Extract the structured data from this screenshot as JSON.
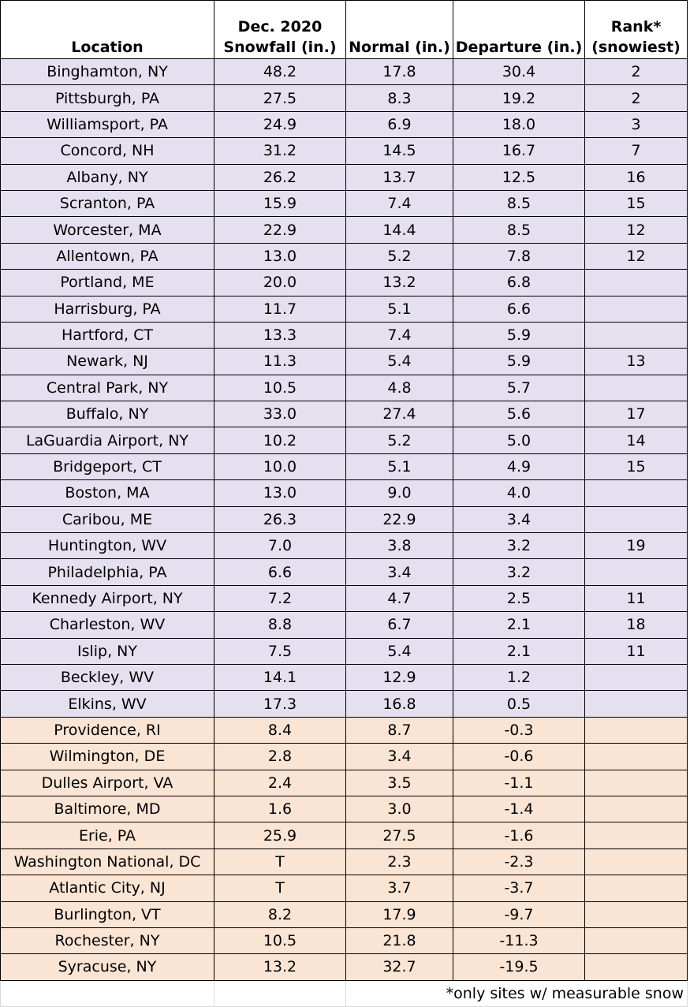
{
  "colors": {
    "above_normal_row": "#e4e0ef",
    "below_normal_row": "#fae4d4"
  },
  "headers": {
    "location": "Location",
    "snowfall_line1": "Dec. 2020",
    "snowfall_line2": "Snowfall (in.)",
    "normal": "Normal (in.)",
    "departure": "Departure (in.)",
    "rank_line1": "Rank*",
    "rank_line2": "(snowiest)"
  },
  "rows": [
    {
      "location": "Binghamton, NY",
      "snowfall": "48.2",
      "normal": "17.8",
      "departure": "30.4",
      "rank": "2",
      "group": "above"
    },
    {
      "location": "Pittsburgh, PA",
      "snowfall": "27.5",
      "normal": "8.3",
      "departure": "19.2",
      "rank": "2",
      "group": "above"
    },
    {
      "location": "Williamsport, PA",
      "snowfall": "24.9",
      "normal": "6.9",
      "departure": "18.0",
      "rank": "3",
      "group": "above"
    },
    {
      "location": "Concord, NH",
      "snowfall": "31.2",
      "normal": "14.5",
      "departure": "16.7",
      "rank": "7",
      "group": "above"
    },
    {
      "location": "Albany, NY",
      "snowfall": "26.2",
      "normal": "13.7",
      "departure": "12.5",
      "rank": "16",
      "group": "above"
    },
    {
      "location": "Scranton, PA",
      "snowfall": "15.9",
      "normal": "7.4",
      "departure": "8.5",
      "rank": "15",
      "group": "above"
    },
    {
      "location": "Worcester, MA",
      "snowfall": "22.9",
      "normal": "14.4",
      "departure": "8.5",
      "rank": "12",
      "group": "above"
    },
    {
      "location": "Allentown, PA",
      "snowfall": "13.0",
      "normal": "5.2",
      "departure": "7.8",
      "rank": "12",
      "group": "above"
    },
    {
      "location": "Portland, ME",
      "snowfall": "20.0",
      "normal": "13.2",
      "departure": "6.8",
      "rank": "",
      "group": "above"
    },
    {
      "location": "Harrisburg, PA",
      "snowfall": "11.7",
      "normal": "5.1",
      "departure": "6.6",
      "rank": "",
      "group": "above"
    },
    {
      "location": "Hartford, CT",
      "snowfall": "13.3",
      "normal": "7.4",
      "departure": "5.9",
      "rank": "",
      "group": "above"
    },
    {
      "location": "Newark, NJ",
      "snowfall": "11.3",
      "normal": "5.4",
      "departure": "5.9",
      "rank": "13",
      "group": "above"
    },
    {
      "location": "Central Park, NY",
      "snowfall": "10.5",
      "normal": "4.8",
      "departure": "5.7",
      "rank": "",
      "group": "above"
    },
    {
      "location": "Buffalo, NY",
      "snowfall": "33.0",
      "normal": "27.4",
      "departure": "5.6",
      "rank": "17",
      "group": "above"
    },
    {
      "location": "LaGuardia Airport, NY",
      "snowfall": "10.2",
      "normal": "5.2",
      "departure": "5.0",
      "rank": "14",
      "group": "above"
    },
    {
      "location": "Bridgeport, CT",
      "snowfall": "10.0",
      "normal": "5.1",
      "departure": "4.9",
      "rank": "15",
      "group": "above"
    },
    {
      "location": "Boston, MA",
      "snowfall": "13.0",
      "normal": "9.0",
      "departure": "4.0",
      "rank": "",
      "group": "above"
    },
    {
      "location": "Caribou, ME",
      "snowfall": "26.3",
      "normal": "22.9",
      "departure": "3.4",
      "rank": "",
      "group": "above"
    },
    {
      "location": "Huntington, WV",
      "snowfall": "7.0",
      "normal": "3.8",
      "departure": "3.2",
      "rank": "19",
      "group": "above"
    },
    {
      "location": "Philadelphia, PA",
      "snowfall": "6.6",
      "normal": "3.4",
      "departure": "3.2",
      "rank": "",
      "group": "above"
    },
    {
      "location": "Kennedy Airport, NY",
      "snowfall": "7.2",
      "normal": "4.7",
      "departure": "2.5",
      "rank": "11",
      "group": "above"
    },
    {
      "location": "Charleston, WV",
      "snowfall": "8.8",
      "normal": "6.7",
      "departure": "2.1",
      "rank": "18",
      "group": "above"
    },
    {
      "location": "Islip, NY",
      "snowfall": "7.5",
      "normal": "5.4",
      "departure": "2.1",
      "rank": "11",
      "group": "above"
    },
    {
      "location": "Beckley, WV",
      "snowfall": "14.1",
      "normal": "12.9",
      "departure": "1.2",
      "rank": "",
      "group": "above"
    },
    {
      "location": "Elkins, WV",
      "snowfall": "17.3",
      "normal": "16.8",
      "departure": "0.5",
      "rank": "",
      "group": "above"
    },
    {
      "location": "Providence, RI",
      "snowfall": "8.4",
      "normal": "8.7",
      "departure": "-0.3",
      "rank": "",
      "group": "below"
    },
    {
      "location": "Wilmington, DE",
      "snowfall": "2.8",
      "normal": "3.4",
      "departure": "-0.6",
      "rank": "",
      "group": "below"
    },
    {
      "location": "Dulles Airport, VA",
      "snowfall": "2.4",
      "normal": "3.5",
      "departure": "-1.1",
      "rank": "",
      "group": "below"
    },
    {
      "location": "Baltimore, MD",
      "snowfall": "1.6",
      "normal": "3.0",
      "departure": "-1.4",
      "rank": "",
      "group": "below"
    },
    {
      "location": "Erie, PA",
      "snowfall": "25.9",
      "normal": "27.5",
      "departure": "-1.6",
      "rank": "",
      "group": "below"
    },
    {
      "location": "Washington National, DC",
      "snowfall": "T",
      "normal": "2.3",
      "departure": "-2.3",
      "rank": "",
      "group": "below"
    },
    {
      "location": "Atlantic City, NJ",
      "snowfall": "T",
      "normal": "3.7",
      "departure": "-3.7",
      "rank": "",
      "group": "below"
    },
    {
      "location": "Burlington, VT",
      "snowfall": "8.2",
      "normal": "17.9",
      "departure": "-9.7",
      "rank": "",
      "group": "below"
    },
    {
      "location": "Rochester, NY",
      "snowfall": "10.5",
      "normal": "21.8",
      "departure": "-11.3",
      "rank": "",
      "group": "below"
    },
    {
      "location": "Syracuse, NY",
      "snowfall": "13.2",
      "normal": "32.7",
      "departure": "-19.5",
      "rank": "",
      "group": "below"
    }
  ],
  "footnote": "*only sites w/ measurable snow"
}
